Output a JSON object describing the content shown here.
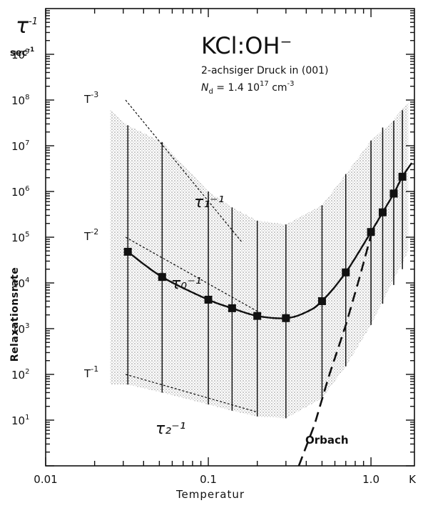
{
  "chart_data": {
    "type": "scatter",
    "title": "KCl:OH⁻",
    "subtitle_line1": "2-achsiger Druck in (001)",
    "subtitle_line2": "N",
    "subtitle_sub": "d",
    "subtitle_rest": " = 1.4 10",
    "subtitle_exp": "17",
    "subtitle_unit": " cm",
    "subtitle_unit_exp": "-3",
    "xlabel": "Temperatur",
    "ylabel": "Relaxationsrate",
    "y_unit_symbol": "τ",
    "y_unit_symbol_exp": "-1",
    "y_unit": "sec",
    "y_unit_exp": "-1",
    "x_unit": "K",
    "x_scale": "log",
    "y_scale": "log",
    "xlim": [
      0.01,
      1.85
    ],
    "ylim": [
      1,
      10000000000
    ],
    "x_ticks": [
      {
        "value": 0.01,
        "label": "0.01"
      },
      {
        "value": 0.1,
        "label": "0.1"
      },
      {
        "value": 1.0,
        "label": "1.0"
      }
    ],
    "y_ticks": [
      {
        "value": 10,
        "base": "10",
        "exp": "1"
      },
      {
        "value": 100,
        "base": "10",
        "exp": "2"
      },
      {
        "value": 1000,
        "base": "10",
        "exp": "3"
      },
      {
        "value": 10000,
        "base": "10",
        "exp": "4"
      },
      {
        "value": 100000,
        "base": "10",
        "exp": "5"
      },
      {
        "value": 1000000,
        "base": "10",
        "exp": "6"
      },
      {
        "value": 10000000,
        "base": "10",
        "exp": "7"
      },
      {
        "value": 100000000,
        "base": "10",
        "exp": "8"
      },
      {
        "value": 1000000000,
        "base": "10",
        "exp": "9"
      }
    ],
    "points": [
      {
        "x": 0.032,
        "y": 48000,
        "ylow": 60,
        "yhigh": 28000000
      },
      {
        "x": 0.052,
        "y": 13500,
        "ylow": 40,
        "yhigh": 12000000
      },
      {
        "x": 0.1,
        "y": 4300,
        "ylow": 22,
        "yhigh": 1000000
      },
      {
        "x": 0.14,
        "y": 2800,
        "ylow": 16,
        "yhigh": 450000
      },
      {
        "x": 0.2,
        "y": 1900,
        "ylow": 12,
        "yhigh": 230000
      },
      {
        "x": 0.3,
        "y": 1700,
        "ylow": 11,
        "yhigh": 190000
      },
      {
        "x": 0.5,
        "y": 4000,
        "ylow": 30,
        "yhigh": 500000
      },
      {
        "x": 0.7,
        "y": 17000,
        "ylow": 150,
        "yhigh": 2400000
      },
      {
        "x": 1.0,
        "y": 130000,
        "ylow": 1200,
        "yhigh": 13000000
      },
      {
        "x": 1.18,
        "y": 350000,
        "ylow": 3500,
        "yhigh": 25000000
      },
      {
        "x": 1.38,
        "y": 900000,
        "ylow": 9000,
        "yhigh": 35000000
      },
      {
        "x": 1.56,
        "y": 2100000,
        "ylow": 20000,
        "yhigh": 60000000
      }
    ],
    "fit_curve": {
      "name": "τ₀⁻¹",
      "x": [
        0.032,
        0.052,
        0.1,
        0.14,
        0.2,
        0.3,
        0.4,
        0.5,
        0.7,
        1.0,
        1.18,
        1.38,
        1.56,
        1.78
      ],
      "y": [
        48000,
        13500,
        4300,
        2800,
        1900,
        1700,
        2300,
        4000,
        17000,
        130000,
        350000,
        900000,
        2100000,
        4200000
      ]
    },
    "band": {
      "x": [
        0.025,
        0.032,
        0.052,
        0.1,
        0.14,
        0.2,
        0.3,
        0.5,
        0.7,
        1.0,
        1.3,
        1.7
      ],
      "upper": [
        60000000,
        28000000,
        12000000,
        1000000,
        450000,
        230000,
        190000,
        500000,
        2400000,
        13000000,
        30000000,
        90000000
      ],
      "lower": [
        60,
        60,
        40,
        22,
        16,
        12,
        11,
        30,
        150,
        1200,
        8000,
        50000
      ]
    },
    "asymptotes": [
      {
        "label": "T",
        "label_exp": "-3",
        "name": "τ₁⁻¹",
        "x": [
          0.031,
          0.16
        ],
        "y": [
          100000000,
          80000
        ]
      },
      {
        "label": "T",
        "label_exp": "-2",
        "name": "τ₀⁻¹",
        "x": [
          0.031,
          0.2
        ],
        "y": [
          100000,
          2400
        ]
      },
      {
        "label": "T",
        "label_exp": "-1",
        "name": "τ₂⁻¹",
        "x": [
          0.031,
          0.2
        ],
        "y": [
          100,
          15
        ]
      }
    ],
    "orbach": {
      "label": "Orbach",
      "x": [
        0.36,
        0.45,
        0.55,
        0.7,
        0.85,
        1.0
      ],
      "y": [
        1,
        8,
        90,
        1200,
        13000,
        110000
      ]
    },
    "curve_labels": {
      "tau1": "τ₁⁻¹",
      "tau0": "τ₀⁻¹",
      "tau2": "τ₂⁻¹"
    }
  }
}
